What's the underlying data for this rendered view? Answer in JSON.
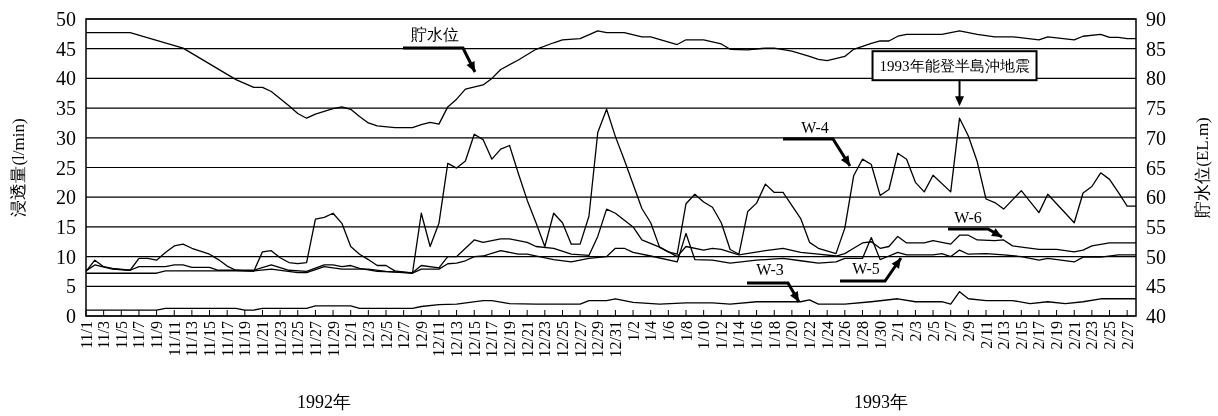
{
  "chart_data": {
    "type": "line",
    "ylabel": "浸透量(l/min)",
    "y2label": "貯水位(EL.m)",
    "ylim": [
      0,
      50
    ],
    "yticks": [
      0,
      5,
      10,
      15,
      20,
      25,
      30,
      35,
      40,
      45,
      50
    ],
    "y2lim": [
      40,
      90
    ],
    "y2ticks": [
      40,
      45,
      50,
      55,
      60,
      65,
      70,
      75,
      80,
      85,
      90
    ],
    "xlim": [
      "1992-11-01",
      "1993-02-28"
    ],
    "xticks": [
      {
        "value": "1992-11-01",
        "label": "11/1"
      },
      {
        "value": "1992-11-03",
        "label": "11/3"
      },
      {
        "value": "1992-11-05",
        "label": "11/5"
      },
      {
        "value": "1992-11-07",
        "label": "11/7"
      },
      {
        "value": "1992-11-09",
        "label": "11/9"
      },
      {
        "value": "1992-11-11",
        "label": "11/11"
      },
      {
        "value": "1992-11-13",
        "label": "11/13"
      },
      {
        "value": "1992-11-15",
        "label": "11/15"
      },
      {
        "value": "1992-11-17",
        "label": "11/17"
      },
      {
        "value": "1992-11-19",
        "label": "11/19"
      },
      {
        "value": "1992-11-21",
        "label": "11/21"
      },
      {
        "value": "1992-11-23",
        "label": "11/23"
      },
      {
        "value": "1992-11-25",
        "label": "11/25"
      },
      {
        "value": "1992-11-27",
        "label": "11/27"
      },
      {
        "value": "1992-11-29",
        "label": "11/29"
      },
      {
        "value": "1992-12-01",
        "label": "12/1"
      },
      {
        "value": "1992-12-03",
        "label": "12/3"
      },
      {
        "value": "1992-12-05",
        "label": "12/5"
      },
      {
        "value": "1992-12-07",
        "label": "12/7"
      },
      {
        "value": "1992-12-09",
        "label": "12/9"
      },
      {
        "value": "1992-12-11",
        "label": "12/11"
      },
      {
        "value": "1992-12-13",
        "label": "12/13"
      },
      {
        "value": "1992-12-15",
        "label": "12/15"
      },
      {
        "value": "1992-12-17",
        "label": "12/17"
      },
      {
        "value": "1992-12-19",
        "label": "12/19"
      },
      {
        "value": "1992-12-21",
        "label": "12/21"
      },
      {
        "value": "1992-12-23",
        "label": "12/23"
      },
      {
        "value": "1992-12-25",
        "label": "12/25"
      },
      {
        "value": "1992-12-27",
        "label": "12/27"
      },
      {
        "value": "1992-12-29",
        "label": "12/29"
      },
      {
        "value": "1992-12-31",
        "label": "12/31"
      },
      {
        "value": "1993-01-02",
        "label": "1/2"
      },
      {
        "value": "1993-01-04",
        "label": "1/4"
      },
      {
        "value": "1993-01-06",
        "label": "1/6"
      },
      {
        "value": "1993-01-08",
        "label": "1/8"
      },
      {
        "value": "1993-01-10",
        "label": "1/10"
      },
      {
        "value": "1993-01-12",
        "label": "1/12"
      },
      {
        "value": "1993-01-14",
        "label": "1/14"
      },
      {
        "value": "1993-01-16",
        "label": "1/16"
      },
      {
        "value": "1993-01-18",
        "label": "1/18"
      },
      {
        "value": "1993-01-20",
        "label": "1/20"
      },
      {
        "value": "1993-01-22",
        "label": "1/22"
      },
      {
        "value": "1993-01-24",
        "label": "1/24"
      },
      {
        "value": "1993-01-26",
        "label": "1/26"
      },
      {
        "value": "1993-01-28",
        "label": "1/28"
      },
      {
        "value": "1993-01-30",
        "label": "1/30"
      },
      {
        "value": "1993-02-01",
        "label": "2/1"
      },
      {
        "value": "1993-02-03",
        "label": "2/3"
      },
      {
        "value": "1993-02-05",
        "label": "2/5"
      },
      {
        "value": "1993-02-07",
        "label": "2/7"
      },
      {
        "value": "1993-02-09",
        "label": "2/9"
      },
      {
        "value": "1993-02-11",
        "label": "2/11"
      },
      {
        "value": "1993-02-13",
        "label": "2/13"
      },
      {
        "value": "1993-02-15",
        "label": "2/15"
      },
      {
        "value": "1993-02-17",
        "label": "2/17"
      },
      {
        "value": "1993-02-19",
        "label": "2/19"
      },
      {
        "value": "1993-02-21",
        "label": "2/21"
      },
      {
        "value": "1993-02-23",
        "label": "2/23"
      },
      {
        "value": "1993-02-25",
        "label": "2/25"
      },
      {
        "value": "1993-02-27",
        "label": "2/27"
      }
    ],
    "grid": "y",
    "annotations": [
      "1992年",
      "1993年",
      {
        "text": "1993年能登半島沖地震",
        "x": "1993-02-08",
        "y": 33.3
      }
    ],
    "series": [
      {
        "name": "貯水位",
        "axis": "y2",
        "color": "#000000",
        "x": [
          "1992-11-01",
          "1992-11-06",
          "1992-11-12",
          "1992-11-18",
          "1992-11-20",
          "1992-11-21",
          "1992-11-22",
          "1992-11-24",
          "1992-11-25",
          "1992-11-26",
          "1992-11-27",
          "1992-11-29",
          "1992-11-30",
          "1992-12-01",
          "1992-12-02",
          "1992-12-03",
          "1992-12-04",
          "1992-12-06",
          "1992-12-08",
          "1992-12-09",
          "1992-12-10",
          "1992-12-11",
          "1992-12-12",
          "1992-12-13",
          "1992-12-14",
          "1992-12-16",
          "1992-12-17",
          "1992-12-18",
          "1992-12-20",
          "1992-12-22",
          "1992-12-24",
          "1992-12-25",
          "1992-12-27",
          "1992-12-29",
          "1992-12-30",
          "1993-01-01",
          "1993-01-03",
          "1993-01-04",
          "1993-01-07",
          "1993-01-08",
          "1993-01-10",
          "1993-01-12",
          "1993-01-13",
          "1993-01-15",
          "1993-01-17",
          "1993-01-18",
          "1993-01-20",
          "1993-01-22",
          "1993-01-23",
          "1993-01-24",
          "1993-01-26",
          "1993-01-27",
          "1993-01-29",
          "1993-01-30",
          "1993-01-31",
          "1993-02-01",
          "1993-02-02",
          "1993-02-06",
          "1993-02-08",
          "1993-02-10",
          "1993-02-12",
          "1993-02-14",
          "1993-02-17",
          "1993-02-18",
          "1993-02-21",
          "1993-02-22",
          "1993-02-24",
          "1993-02-25",
          "1993-02-26",
          "1993-02-27",
          "1993-02-28"
        ],
        "values": [
          87.7,
          87.7,
          85.1,
          79.8,
          78.5,
          78.5,
          77.8,
          75.4,
          74.1,
          73.3,
          74.0,
          74.9,
          75.2,
          74.8,
          73.6,
          72.5,
          72.0,
          71.7,
          71.7,
          72.2,
          72.6,
          72.3,
          75.2,
          76.5,
          78.2,
          78.9,
          80.0,
          81.5,
          83.1,
          84.9,
          86.0,
          86.5,
          86.7,
          88.0,
          87.7,
          87.7,
          87.0,
          87.0,
          85.7,
          86.5,
          86.5,
          85.8,
          84.9,
          84.8,
          85.1,
          85.1,
          84.6,
          83.7,
          83.2,
          83.0,
          83.7,
          84.9,
          85.9,
          86.3,
          86.3,
          87.1,
          87.4,
          87.4,
          88.0,
          87.4,
          87.0,
          87.0,
          86.5,
          87.0,
          86.5,
          87.1,
          87.4,
          86.9,
          86.9,
          86.7,
          86.7
        ]
      },
      {
        "name": "W-4",
        "color": "#000000",
        "x": [
          "1992-11-01",
          "1992-11-02",
          "1992-11-03",
          "1992-11-04",
          "1992-11-06",
          "1992-11-07",
          "1992-11-08",
          "1992-11-09",
          "1992-11-10",
          "1992-11-11",
          "1992-11-12",
          "1992-11-13",
          "1992-11-15",
          "1992-11-16",
          "1992-11-17",
          "1992-11-18",
          "1992-11-20",
          "1992-11-21",
          "1992-11-22",
          "1992-11-23",
          "1992-11-24",
          "1992-11-25",
          "1992-11-26",
          "1992-11-27",
          "1992-11-28",
          "1992-11-29",
          "1992-11-30",
          "1992-12-01",
          "1992-12-02",
          "1992-12-03",
          "1992-12-04",
          "1992-12-05",
          "1992-12-06",
          "1992-12-08",
          "1992-12-09",
          "1992-12-10",
          "1992-12-11",
          "1992-12-12",
          "1992-12-13",
          "1992-12-14",
          "1992-12-15",
          "1992-12-16",
          "1992-12-17",
          "1992-12-18",
          "1992-12-19",
          "1992-12-20",
          "1992-12-21",
          "1992-12-22",
          "1992-12-23",
          "1992-12-24",
          "1992-12-25",
          "1992-12-26",
          "1992-12-27",
          "1992-12-28",
          "1992-12-29",
          "1992-12-30",
          "1992-12-31",
          "1993-01-01",
          "1993-01-03",
          "1993-01-04",
          "1993-01-05",
          "1993-01-06",
          "1993-01-07",
          "1993-01-08",
          "1993-01-09",
          "1993-01-10",
          "1993-01-11",
          "1993-01-12",
          "1993-01-13",
          "1993-01-14",
          "1993-01-15",
          "1993-01-16",
          "1993-01-17",
          "1993-01-18",
          "1993-01-19",
          "1993-01-21",
          "1993-01-22",
          "1993-01-23",
          "1993-01-25",
          "1993-01-26",
          "1993-01-27",
          "1993-01-28",
          "1993-01-29",
          "1993-01-30",
          "1993-01-31",
          "1993-02-01",
          "1993-02-02",
          "1993-02-03",
          "1993-02-04",
          "1993-02-05",
          "1993-02-07",
          "1993-02-08",
          "1993-02-09",
          "1993-02-10",
          "1993-02-11",
          "1993-02-12",
          "1993-02-13",
          "1993-02-15",
          "1993-02-17",
          "1993-02-18",
          "1993-02-21",
          "1993-02-22",
          "1993-02-23",
          "1993-02-24",
          "1993-02-25",
          "1993-02-26",
          "1993-02-27",
          "1993-02-28"
        ],
        "values": [
          7.5,
          9.4,
          8.3,
          8.0,
          7.7,
          9.7,
          9.7,
          9.4,
          10.7,
          11.8,
          12.1,
          11.4,
          10.4,
          9.5,
          8.4,
          7.7,
          7.5,
          10.8,
          11.0,
          9.8,
          9.0,
          8.8,
          9.0,
          16.3,
          16.6,
          17.3,
          15.6,
          11.7,
          10.4,
          9.5,
          8.5,
          8.5,
          7.6,
          7.2,
          17.3,
          11.7,
          15.6,
          25.7,
          24.9,
          26.1,
          30.6,
          29.7,
          26.4,
          28.1,
          28.7,
          24.0,
          19.5,
          15.7,
          11.7,
          17.3,
          15.7,
          12.1,
          12.1,
          16.8,
          30.9,
          34.8,
          30.2,
          26.3,
          18.1,
          15.7,
          11.6,
          10.8,
          10.4,
          18.9,
          20.5,
          19.2,
          18.3,
          15.7,
          11.2,
          10.4,
          17.6,
          19.0,
          22.2,
          20.8,
          20.8,
          16.4,
          12.4,
          11.4,
          10.5,
          14.8,
          23.6,
          26.4,
          25.5,
          20.3,
          21.3,
          27.4,
          26.4,
          22.5,
          20.9,
          23.7,
          20.9,
          33.3,
          30.3,
          26.0,
          19.7,
          19.1,
          18.0,
          21.1,
          17.4,
          20.5,
          15.7,
          20.7,
          21.8,
          24.1,
          23.0,
          20.8,
          18.5,
          18.5
        ]
      },
      {
        "name": "W-6",
        "color": "#000000",
        "x": [
          "1992-11-01",
          "1992-11-02",
          "1992-11-04",
          "1992-11-06",
          "1992-11-07",
          "1992-11-10",
          "1992-11-11",
          "1992-11-12",
          "1992-11-13",
          "1992-11-15",
          "1992-11-16",
          "1992-11-20",
          "1992-11-22",
          "1992-11-24",
          "1992-11-26",
          "1992-11-28",
          "1992-11-29",
          "1992-11-30",
          "1992-12-01",
          "1992-12-02",
          "1992-12-04",
          "1992-12-08",
          "1992-12-09",
          "1992-12-11",
          "1992-12-12",
          "1992-12-13",
          "1992-12-15",
          "1992-12-16",
          "1992-12-18",
          "1992-12-19",
          "1992-12-21",
          "1992-12-22",
          "1992-12-24",
          "1992-12-26",
          "1992-12-28",
          "1992-12-29",
          "1992-12-30",
          "1992-12-31",
          "1993-01-02",
          "1993-01-03",
          "1993-01-05",
          "1993-01-07",
          "1993-01-08",
          "1993-01-10",
          "1993-01-11",
          "1993-01-12",
          "1993-01-14",
          "1993-01-17",
          "1993-01-19",
          "1993-01-21",
          "1993-01-23",
          "1993-01-25",
          "1993-01-26",
          "1993-01-27",
          "1993-01-28",
          "1993-01-29",
          "1993-01-30",
          "1993-01-31",
          "1993-02-01",
          "1993-02-02",
          "1993-02-04",
          "1993-02-05",
          "1993-02-07",
          "1993-02-08",
          "1993-02-09",
          "1993-02-10",
          "1993-02-12",
          "1993-02-13",
          "1993-02-14",
          "1993-02-17",
          "1993-02-19",
          "1993-02-21",
          "1993-02-22",
          "1993-02-23",
          "1993-02-25",
          "1993-02-28"
        ],
        "values": [
          7.6,
          8.6,
          7.9,
          7.7,
          8.3,
          8.3,
          8.6,
          8.6,
          8.2,
          8.2,
          7.7,
          7.7,
          8.6,
          7.7,
          7.5,
          8.6,
          8.6,
          8.3,
          8.5,
          8.0,
          7.5,
          7.3,
          8.5,
          8.1,
          10.0,
          10.0,
          12.8,
          12.4,
          13.0,
          13.0,
          12.4,
          11.7,
          11.4,
          10.4,
          10.2,
          13.4,
          18.0,
          17.3,
          15.0,
          12.8,
          11.6,
          10.0,
          11.7,
          11.1,
          11.4,
          11.2,
          10.3,
          11.0,
          11.4,
          10.7,
          10.4,
          10.1,
          10.5,
          11.4,
          12.3,
          12.5,
          11.4,
          11.7,
          13.4,
          12.3,
          12.3,
          12.7,
          12.1,
          13.6,
          13.6,
          12.8,
          12.7,
          12.8,
          11.8,
          11.2,
          11.2,
          10.8,
          11.1,
          11.8,
          12.3,
          12.3
        ]
      },
      {
        "name": "W-5",
        "color": "#000000",
        "x": [
          "1992-11-01",
          "1992-11-09",
          "1992-11-10",
          "1992-11-20",
          "1992-11-22",
          "1992-11-25",
          "1992-11-26",
          "1992-11-28",
          "1992-11-30",
          "1992-12-03",
          "1992-12-05",
          "1992-12-08",
          "1992-12-09",
          "1992-12-11",
          "1992-12-12",
          "1992-12-13",
          "1992-12-14",
          "1992-12-15",
          "1992-12-16",
          "1992-12-18",
          "1992-12-20",
          "1992-12-21",
          "1992-12-24",
          "1992-12-26",
          "1992-12-28",
          "1992-12-30",
          "1992-12-31",
          "1993-01-01",
          "1993-01-02",
          "1993-01-04",
          "1993-01-07",
          "1993-01-08",
          "1993-01-09",
          "1993-01-11",
          "1993-01-13",
          "1993-01-16",
          "1993-01-19",
          "1993-01-21",
          "1993-01-23",
          "1993-01-25",
          "1993-01-26",
          "1993-01-28",
          "1993-01-29",
          "1993-01-30",
          "1993-01-31",
          "1993-02-01",
          "1993-02-02",
          "1993-02-05",
          "1993-02-06",
          "1993-02-07",
          "1993-02-08",
          "1993-02-09",
          "1993-02-11",
          "1993-02-13",
          "1993-02-15",
          "1993-02-17",
          "1993-02-18",
          "1993-02-21",
          "1993-02-22",
          "1993-02-24",
          "1993-02-26",
          "1993-02-28"
        ],
        "values": [
          7.2,
          7.2,
          7.6,
          7.6,
          7.9,
          7.3,
          7.3,
          8.3,
          7.9,
          7.9,
          7.5,
          7.2,
          7.9,
          7.9,
          8.8,
          8.9,
          9.3,
          10.0,
          10.1,
          11.0,
          10.4,
          10.4,
          9.5,
          9.1,
          9.7,
          10.0,
          11.4,
          11.4,
          10.7,
          10.1,
          9.1,
          13.9,
          9.5,
          9.4,
          8.9,
          9.4,
          9.7,
          9.3,
          8.9,
          9.1,
          9.7,
          9.7,
          13.2,
          9.5,
          10.1,
          10.7,
          10.3,
          10.3,
          10.5,
          10.0,
          11.1,
          10.4,
          10.5,
          10.3,
          10.0,
          9.4,
          9.7,
          9.1,
          9.9,
          9.9,
          10.3,
          10.3
        ]
      },
      {
        "name": "W-3",
        "color": "#000000",
        "x": [
          "1992-11-01",
          "1992-11-09",
          "1992-11-10",
          "1992-11-18",
          "1992-11-19",
          "1992-11-20",
          "1992-11-21",
          "1992-11-26",
          "1992-11-27",
          "1992-12-01",
          "1992-12-02",
          "1992-12-08",
          "1992-12-09",
          "1992-12-11",
          "1992-12-13",
          "1992-12-16",
          "1992-12-17",
          "1992-12-19",
          "1992-12-22",
          "1992-12-27",
          "1992-12-28",
          "1992-12-30",
          "1992-12-31",
          "1993-01-02",
          "1993-01-05",
          "1993-01-08",
          "1993-01-11",
          "1993-01-13",
          "1993-01-16",
          "1993-01-21",
          "1993-01-22",
          "1993-01-23",
          "1993-01-26",
          "1993-01-29",
          "1993-02-01",
          "1993-02-03",
          "1993-02-06",
          "1993-02-07",
          "1993-02-08",
          "1993-02-09",
          "1993-02-11",
          "1993-02-14",
          "1993-02-16",
          "1993-02-18",
          "1993-02-20",
          "1993-02-22",
          "1993-02-24",
          "1993-02-28"
        ],
        "values": [
          1.0,
          1.0,
          1.3,
          1.3,
          1.0,
          1.0,
          1.3,
          1.3,
          1.7,
          1.7,
          1.3,
          1.3,
          1.6,
          1.9,
          2.0,
          2.6,
          2.6,
          2.1,
          2.0,
          2.0,
          2.6,
          2.6,
          2.9,
          2.3,
          2.0,
          2.2,
          2.2,
          2.0,
          2.4,
          2.4,
          2.7,
          2.0,
          2.0,
          2.4,
          2.9,
          2.4,
          2.4,
          2.0,
          4.1,
          2.9,
          2.6,
          2.6,
          2.1,
          2.4,
          2.1,
          2.4,
          2.9,
          2.9
        ]
      }
    ]
  }
}
